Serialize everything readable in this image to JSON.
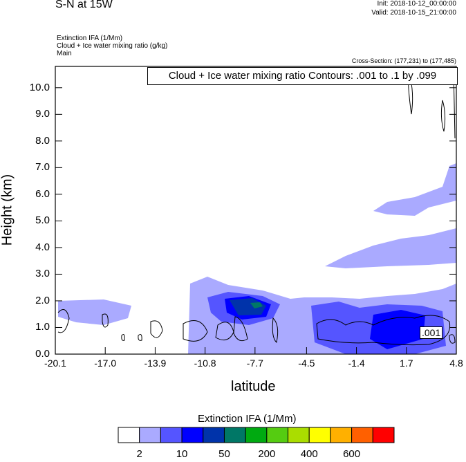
{
  "header": {
    "title": "S-N at 15W",
    "init": "Init: 2018-10-12_00:00:00",
    "valid": "Valid: 2018-10-15_21:00:00",
    "field1": "Extinction IFA   (1/Mm)",
    "field2": "Cloud + Ice water mixing ratio   (g/kg)",
    "field3": "Main",
    "cross_section": "Cross-Section: (177,231) to (177,485)"
  },
  "chart_data": {
    "type": "heatmap",
    "title": "S-N at 15W",
    "xlabel": "latitude",
    "ylabel": "Height (km)",
    "xlim": [
      -20.1,
      4.8
    ],
    "ylim": [
      0,
      10.8
    ],
    "x_ticks": [
      "-20.1",
      "-17.0",
      "-13.9",
      "-10.8",
      "-7.7",
      "-4.5",
      "-1.4",
      "1.7",
      "4.8"
    ],
    "y_ticks": [
      "0.0",
      "1.0",
      "2.0",
      "3.0",
      "4.0",
      "5.0",
      "6.0",
      "7.0",
      "8.0",
      "9.0",
      "10.0"
    ],
    "contour_info": "Cloud + Ice water mixing ratio Contours: .001 to .1 by .099",
    "contour_label": ".001",
    "colorbar": {
      "title": "Extinction IFA  (1/Mm)",
      "colors": [
        "#ffffff",
        "#aaaaff",
        "#5555ff",
        "#0000ff",
        "#0033aa",
        "#007766",
        "#00aa11",
        "#55cc11",
        "#aadd00",
        "#ffff00",
        "#ffb000",
        "#ff6000",
        "#ff0000"
      ],
      "labels": [
        "2",
        "10",
        "50",
        "200",
        "400",
        "600"
      ]
    }
  }
}
